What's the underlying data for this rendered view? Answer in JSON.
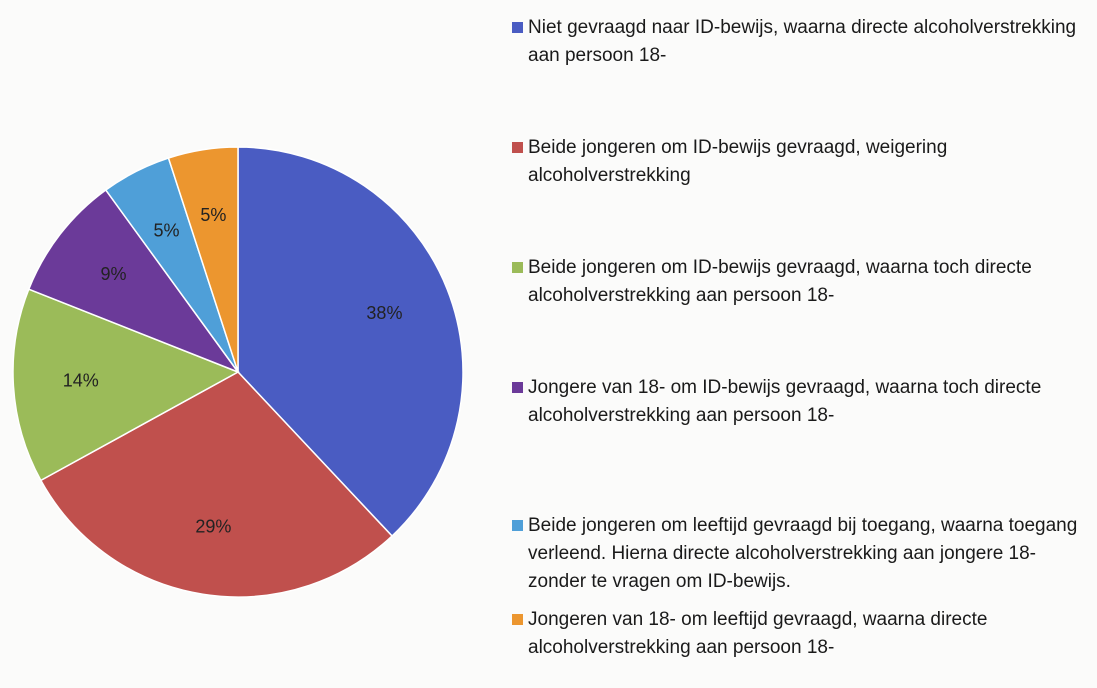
{
  "chart_data": {
    "type": "pie",
    "categories": [
      "Niet gevraagd naar ID-bewijs, waarna directe alcoholverstrekking aan persoon 18-",
      "Beide jongeren om ID-bewijs gevraagd, weigering alcoholverstrekking",
      "Beide jongeren om ID-bewijs gevraagd, waarna toch directe alcoholverstrekking aan persoon 18-",
      "Jongere van 18- om ID-bewijs gevraagd, waarna toch directe alcoholverstrekking aan persoon 18-",
      "Beide jongeren om leeftijd gevraagd bij toegang, waarna toegang verleend. Hierna directe alcoholverstrekking aan jongere 18- zonder te vragen om ID-bewijs.",
      "Jongeren van 18- om leeftijd gevraagd, waarna directe alcoholverstrekking aan persoon 18-"
    ],
    "values": [
      38,
      29,
      14,
      9,
      5,
      5
    ],
    "value_labels": [
      "38%",
      "29%",
      "14%",
      "9%",
      "5%",
      "5%"
    ],
    "colors": [
      "#4a5cc2",
      "#c0504d",
      "#9bbb59",
      "#6b3a99",
      "#4f9fd8",
      "#ec962f"
    ]
  }
}
